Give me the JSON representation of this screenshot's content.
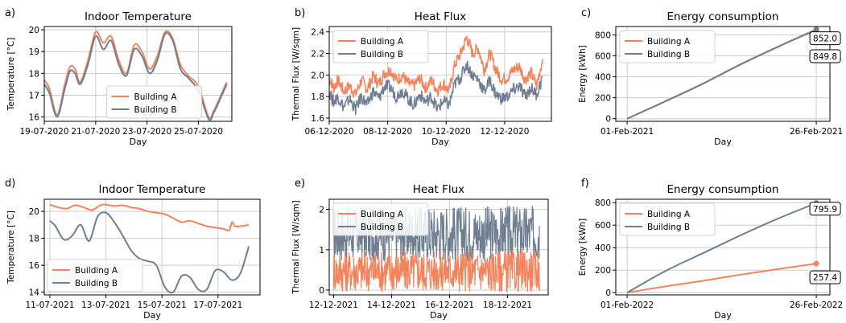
{
  "colors": {
    "building_a": "#f4825b",
    "building_b": "#6f7f92",
    "grid": "#cccccc"
  },
  "chart_data": [
    {
      "panel": "a)",
      "type": "line",
      "title": "Indoor Temperature",
      "xlabel": "Day",
      "ylabel": "Temperature [°C]",
      "xlim": [
        0,
        7.3
      ],
      "ylim": [
        15.8,
        20.15
      ],
      "xticks": [
        0,
        2,
        4,
        6
      ],
      "xtick_labels": [
        "19-07-2020",
        "21-07-2020",
        "23-07-2020",
        "25-07-2020"
      ],
      "yticks": [
        16,
        17,
        18,
        19,
        20
      ],
      "ytick_labels": [
        "16",
        "17",
        "18",
        "19",
        "20"
      ],
      "legend": "bottom-center",
      "series": [
        {
          "name": "Building A",
          "color_key": "building_a",
          "x": [
            0,
            0.2,
            0.5,
            0.8,
            1,
            1.2,
            1.4,
            1.7,
            2,
            2.3,
            2.6,
            2.9,
            3.2,
            3.5,
            3.8,
            4.1,
            4.4,
            4.7,
            5,
            5.3,
            5.6,
            6,
            6.4,
            6.6,
            6.8,
            7.1
          ],
          "y": [
            17.7,
            17.3,
            16.1,
            17.5,
            18.3,
            18.2,
            17.6,
            18.6,
            19.9,
            19.4,
            19.7,
            18.6,
            18.0,
            19.3,
            19.0,
            18.2,
            18.8,
            19.9,
            19.6,
            18.4,
            17.9,
            17.4,
            16.0,
            16.3,
            16.8,
            17.6
          ]
        },
        {
          "name": "Building B",
          "color_key": "building_b",
          "x": [
            0,
            0.2,
            0.5,
            0.8,
            1,
            1.2,
            1.4,
            1.7,
            2,
            2.3,
            2.6,
            2.9,
            3.2,
            3.5,
            3.8,
            4.1,
            4.4,
            4.7,
            5,
            5.3,
            5.6,
            6,
            6.4,
            6.6,
            6.8,
            7.1
          ],
          "y": [
            17.5,
            17.1,
            16.0,
            17.3,
            18.1,
            18.0,
            17.5,
            18.4,
            19.7,
            19.1,
            19.5,
            18.4,
            17.9,
            19.1,
            18.8,
            18.0,
            18.6,
            19.8,
            19.5,
            18.2,
            17.8,
            17.2,
            15.9,
            16.2,
            16.7,
            17.5
          ]
        }
      ]
    },
    {
      "panel": "b)",
      "type": "line",
      "title": "Heat Flux",
      "xlabel": "Day",
      "ylabel": "Thermal Flux [W/sqm]",
      "xlim": [
        0,
        7.6
      ],
      "ylim": [
        1.57,
        2.45
      ],
      "xticks": [
        0,
        2,
        4,
        6
      ],
      "xtick_labels": [
        "06-12-2020",
        "08-12-2020",
        "10-12-2020",
        "12-12-2020"
      ],
      "yticks": [
        1.6,
        1.8,
        2.0,
        2.2,
        2.4
      ],
      "ytick_labels": [
        "1.6",
        "1.8",
        "2.0",
        "2.2",
        "2.4"
      ],
      "legend": "top-left",
      "series": [
        {
          "name": "Building A",
          "color_key": "building_a",
          "x": [
            0,
            0.15,
            0.3,
            0.5,
            0.7,
            0.9,
            1.1,
            1.3,
            1.5,
            1.7,
            1.9,
            2.1,
            2.3,
            2.5,
            2.7,
            2.9,
            3.1,
            3.3,
            3.5,
            3.7,
            3.9,
            4.1,
            4.3,
            4.5,
            4.7,
            4.9,
            5.1,
            5.3,
            5.5,
            5.7,
            5.9,
            6.1,
            6.3,
            6.5,
            6.7,
            6.9,
            7.1,
            7.3
          ],
          "y": [
            1.98,
            1.88,
            1.95,
            1.85,
            1.9,
            1.82,
            1.95,
            1.87,
            1.99,
            1.92,
            2.02,
            2.05,
            1.95,
            2.0,
            1.92,
            1.9,
            1.97,
            1.88,
            1.95,
            1.86,
            1.92,
            1.85,
            2.1,
            2.2,
            2.35,
            2.2,
            2.25,
            2.05,
            2.2,
            2.05,
            1.96,
            1.98,
            2.05,
            2.08,
            1.96,
            2.02,
            1.9,
            2.15
          ]
        },
        {
          "name": "Building B",
          "color_key": "building_b",
          "x": [
            0,
            0.15,
            0.3,
            0.5,
            0.7,
            0.9,
            1.1,
            1.3,
            1.5,
            1.7,
            1.9,
            2.1,
            2.3,
            2.5,
            2.7,
            2.9,
            3.1,
            3.3,
            3.5,
            3.7,
            3.9,
            4.1,
            4.3,
            4.5,
            4.7,
            4.9,
            5.1,
            5.3,
            5.5,
            5.7,
            5.9,
            6.1,
            6.3,
            6.5,
            6.7,
            6.9,
            7.1,
            7.3
          ],
          "y": [
            1.85,
            1.75,
            1.8,
            1.7,
            1.78,
            1.68,
            1.8,
            1.72,
            1.85,
            1.78,
            1.9,
            1.88,
            1.8,
            1.86,
            1.78,
            1.72,
            1.82,
            1.75,
            1.8,
            1.68,
            1.76,
            1.72,
            1.92,
            1.98,
            2.1,
            2.0,
            1.96,
            1.85,
            1.95,
            1.82,
            1.78,
            1.8,
            1.86,
            1.9,
            1.8,
            1.88,
            1.82,
            1.98
          ]
        }
      ]
    },
    {
      "panel": "c)",
      "type": "line",
      "title": "Energy consumption",
      "xlabel": "Day",
      "ylabel": "Energy [kWh]",
      "xlim": [
        -1.5,
        26.8
      ],
      "ylim": [
        -25,
        880
      ],
      "xticks": [
        0,
        25
      ],
      "xtick_labels": [
        "01-Feb-2021",
        "26-Feb-2021"
      ],
      "yticks": [
        0,
        200,
        400,
        600,
        800
      ],
      "ytick_labels": [
        "0",
        "200",
        "400",
        "600",
        "800"
      ],
      "legend": "top-left",
      "annotations": [
        "852.0",
        "849.8"
      ],
      "series": [
        {
          "name": "Building A",
          "color_key": "building_a",
          "x": [
            0,
            5,
            10,
            15,
            20,
            25
          ],
          "y": [
            0,
            165,
            335,
            520,
            690,
            852.0
          ]
        },
        {
          "name": "Building B",
          "color_key": "building_b",
          "x": [
            0,
            5,
            10,
            15,
            20,
            25
          ],
          "y": [
            0,
            164,
            333,
            518,
            688,
            849.8
          ]
        }
      ]
    },
    {
      "panel": "d)",
      "type": "line",
      "title": "Indoor Temperature",
      "xlabel": "Day",
      "ylabel": "Temperature [°C]",
      "xlim": [
        -0.2,
        7.5
      ],
      "ylim": [
        13.8,
        20.9
      ],
      "xticks": [
        0,
        2,
        4,
        6
      ],
      "xtick_labels": [
        "11-07-2021",
        "13-07-2021",
        "15-07-2021",
        "17-07-2021"
      ],
      "yticks": [
        14,
        16,
        18,
        20
      ],
      "ytick_labels": [
        "14",
        "16",
        "18",
        "20"
      ],
      "legend": "bottom-left",
      "series": [
        {
          "name": "Building A",
          "color_key": "building_a",
          "x": [
            0,
            0.3,
            0.6,
            0.9,
            1.2,
            1.5,
            1.8,
            2.0,
            2.3,
            2.6,
            2.9,
            3.2,
            3.5,
            3.8,
            4.1,
            4.4,
            4.7,
            5.0,
            5.3,
            5.6,
            5.9,
            6.2,
            6.4,
            6.5,
            6.6,
            6.8,
            7.1
          ],
          "y": [
            20.5,
            20.3,
            20.2,
            20.45,
            20.3,
            20.1,
            20.45,
            20.5,
            20.4,
            20.45,
            20.3,
            20.2,
            20.0,
            19.9,
            19.8,
            19.5,
            19.2,
            19.3,
            19.1,
            18.9,
            18.8,
            18.7,
            18.6,
            19.2,
            18.9,
            18.9,
            19.0
          ]
        },
        {
          "name": "Building B",
          "color_key": "building_b",
          "x": [
            0,
            0.2,
            0.5,
            0.8,
            1.1,
            1.4,
            1.7,
            2.0,
            2.3,
            2.6,
            2.9,
            3.2,
            3.5,
            3.8,
            4.1,
            4.4,
            4.7,
            5.0,
            5.3,
            5.6,
            5.9,
            6.2,
            6.5,
            6.8,
            7.1
          ],
          "y": [
            19.3,
            18.9,
            17.9,
            18.2,
            19.0,
            17.8,
            19.6,
            19.9,
            19.2,
            18.2,
            17.1,
            16.5,
            16.3,
            16.0,
            14.4,
            14.0,
            15.2,
            15.1,
            14.2,
            14.2,
            15.6,
            15.5,
            14.9,
            15.4,
            17.4
          ]
        }
      ]
    },
    {
      "panel": "e)",
      "type": "line",
      "title": "Heat Flux",
      "xlabel": "Day",
      "ylabel": "Thermal Flux [W/sqm]",
      "xlim": [
        -0.15,
        7.4
      ],
      "ylim": [
        -0.12,
        2.25
      ],
      "xticks": [
        0,
        2,
        4,
        6
      ],
      "xtick_labels": [
        "12-12-2021",
        "14-12-2021",
        "16-12-2021",
        "18-12-2021"
      ],
      "yticks": [
        0,
        1,
        2
      ],
      "ytick_labels": [
        "0",
        "1",
        "2"
      ],
      "legend": "top-left",
      "band_series": [
        {
          "name": "Building B",
          "color_key": "building_b",
          "x_range": [
            0,
            7.1
          ],
          "low": 0.7,
          "high": 2.1
        },
        {
          "name": "Building A",
          "color_key": "building_a",
          "x_range": [
            0,
            7.1
          ],
          "low": -0.05,
          "high": 1.0
        }
      ]
    },
    {
      "panel": "f)",
      "type": "line",
      "title": "Energy consumption",
      "xlabel": "Day",
      "ylabel": "Energy [kWh]",
      "xlim": [
        -1.5,
        26.8
      ],
      "ylim": [
        -20,
        830
      ],
      "xticks": [
        0,
        25
      ],
      "xtick_labels": [
        "01-Feb-2022",
        "26-Feb-2022"
      ],
      "yticks": [
        0,
        200,
        400,
        600,
        800
      ],
      "ytick_labels": [
        "0",
        "200",
        "400",
        "600",
        "800"
      ],
      "legend": "top-left",
      "annotations": [
        "795.9",
        "257.4"
      ],
      "series": [
        {
          "name": "Building A",
          "color_key": "building_a",
          "x": [
            0,
            5,
            10,
            15,
            20,
            25
          ],
          "y": [
            0,
            55,
            105,
            160,
            210,
            257.4
          ]
        },
        {
          "name": "Building B",
          "color_key": "building_b",
          "x": [
            0,
            5,
            10,
            15,
            20,
            25
          ],
          "y": [
            0,
            190,
            350,
            510,
            660,
            795.9
          ]
        }
      ]
    }
  ]
}
